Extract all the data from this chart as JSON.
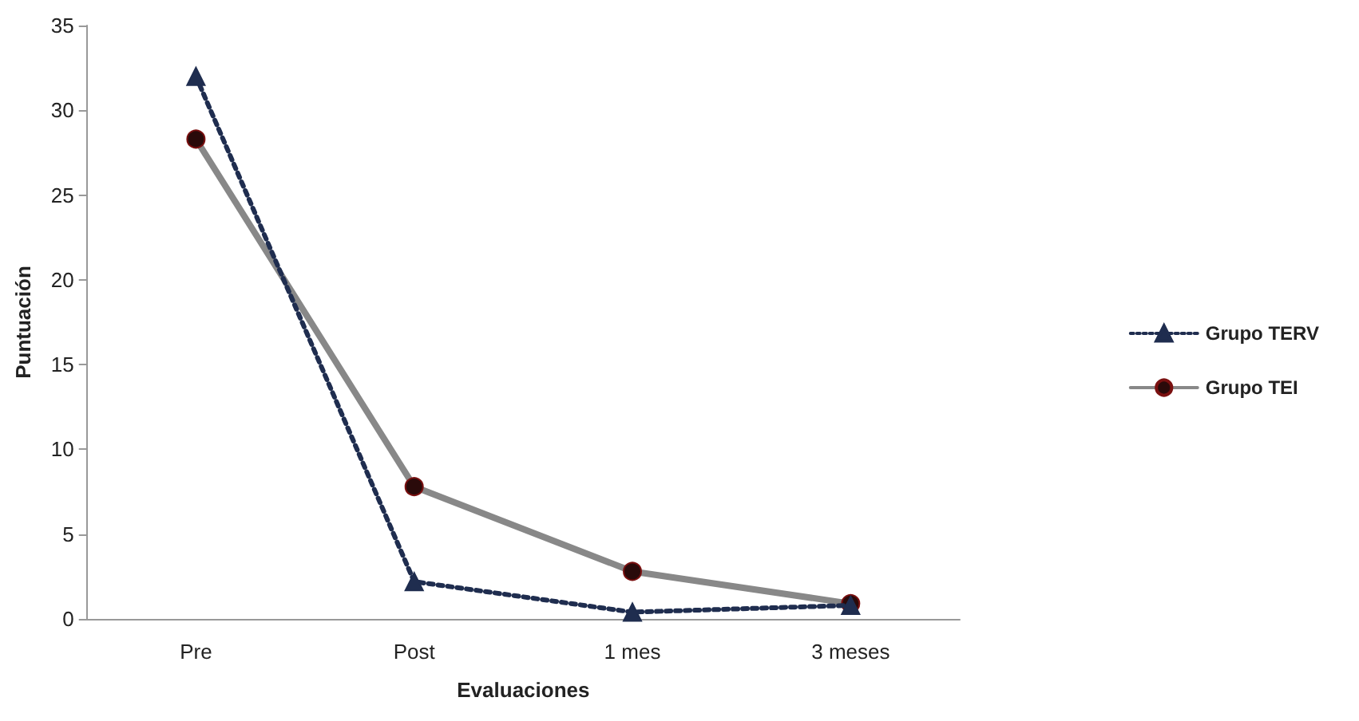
{
  "chart_data": {
    "type": "line",
    "xlabel": "Evaluaciones",
    "ylabel": "Puntuación",
    "categories": [
      "Pre",
      "Post",
      "1 mes",
      "3 meses"
    ],
    "series": [
      {
        "name": "Grupo TERV",
        "color": "#1f2d4f",
        "values": [
          32.0,
          2.2,
          0.4,
          0.8
        ],
        "marker": "triangle",
        "line_style": "dotted"
      },
      {
        "name": "Grupo TEI",
        "color": "#2a0a0a",
        "values": [
          28.3,
          7.8,
          2.8,
          0.9
        ],
        "marker": "circle",
        "line_style": "solid"
      }
    ],
    "ylim": [
      0,
      35
    ],
    "yticks": [
      0,
      5,
      10,
      15,
      20,
      25,
      30,
      35
    ],
    "grid": false,
    "legend": "right"
  }
}
